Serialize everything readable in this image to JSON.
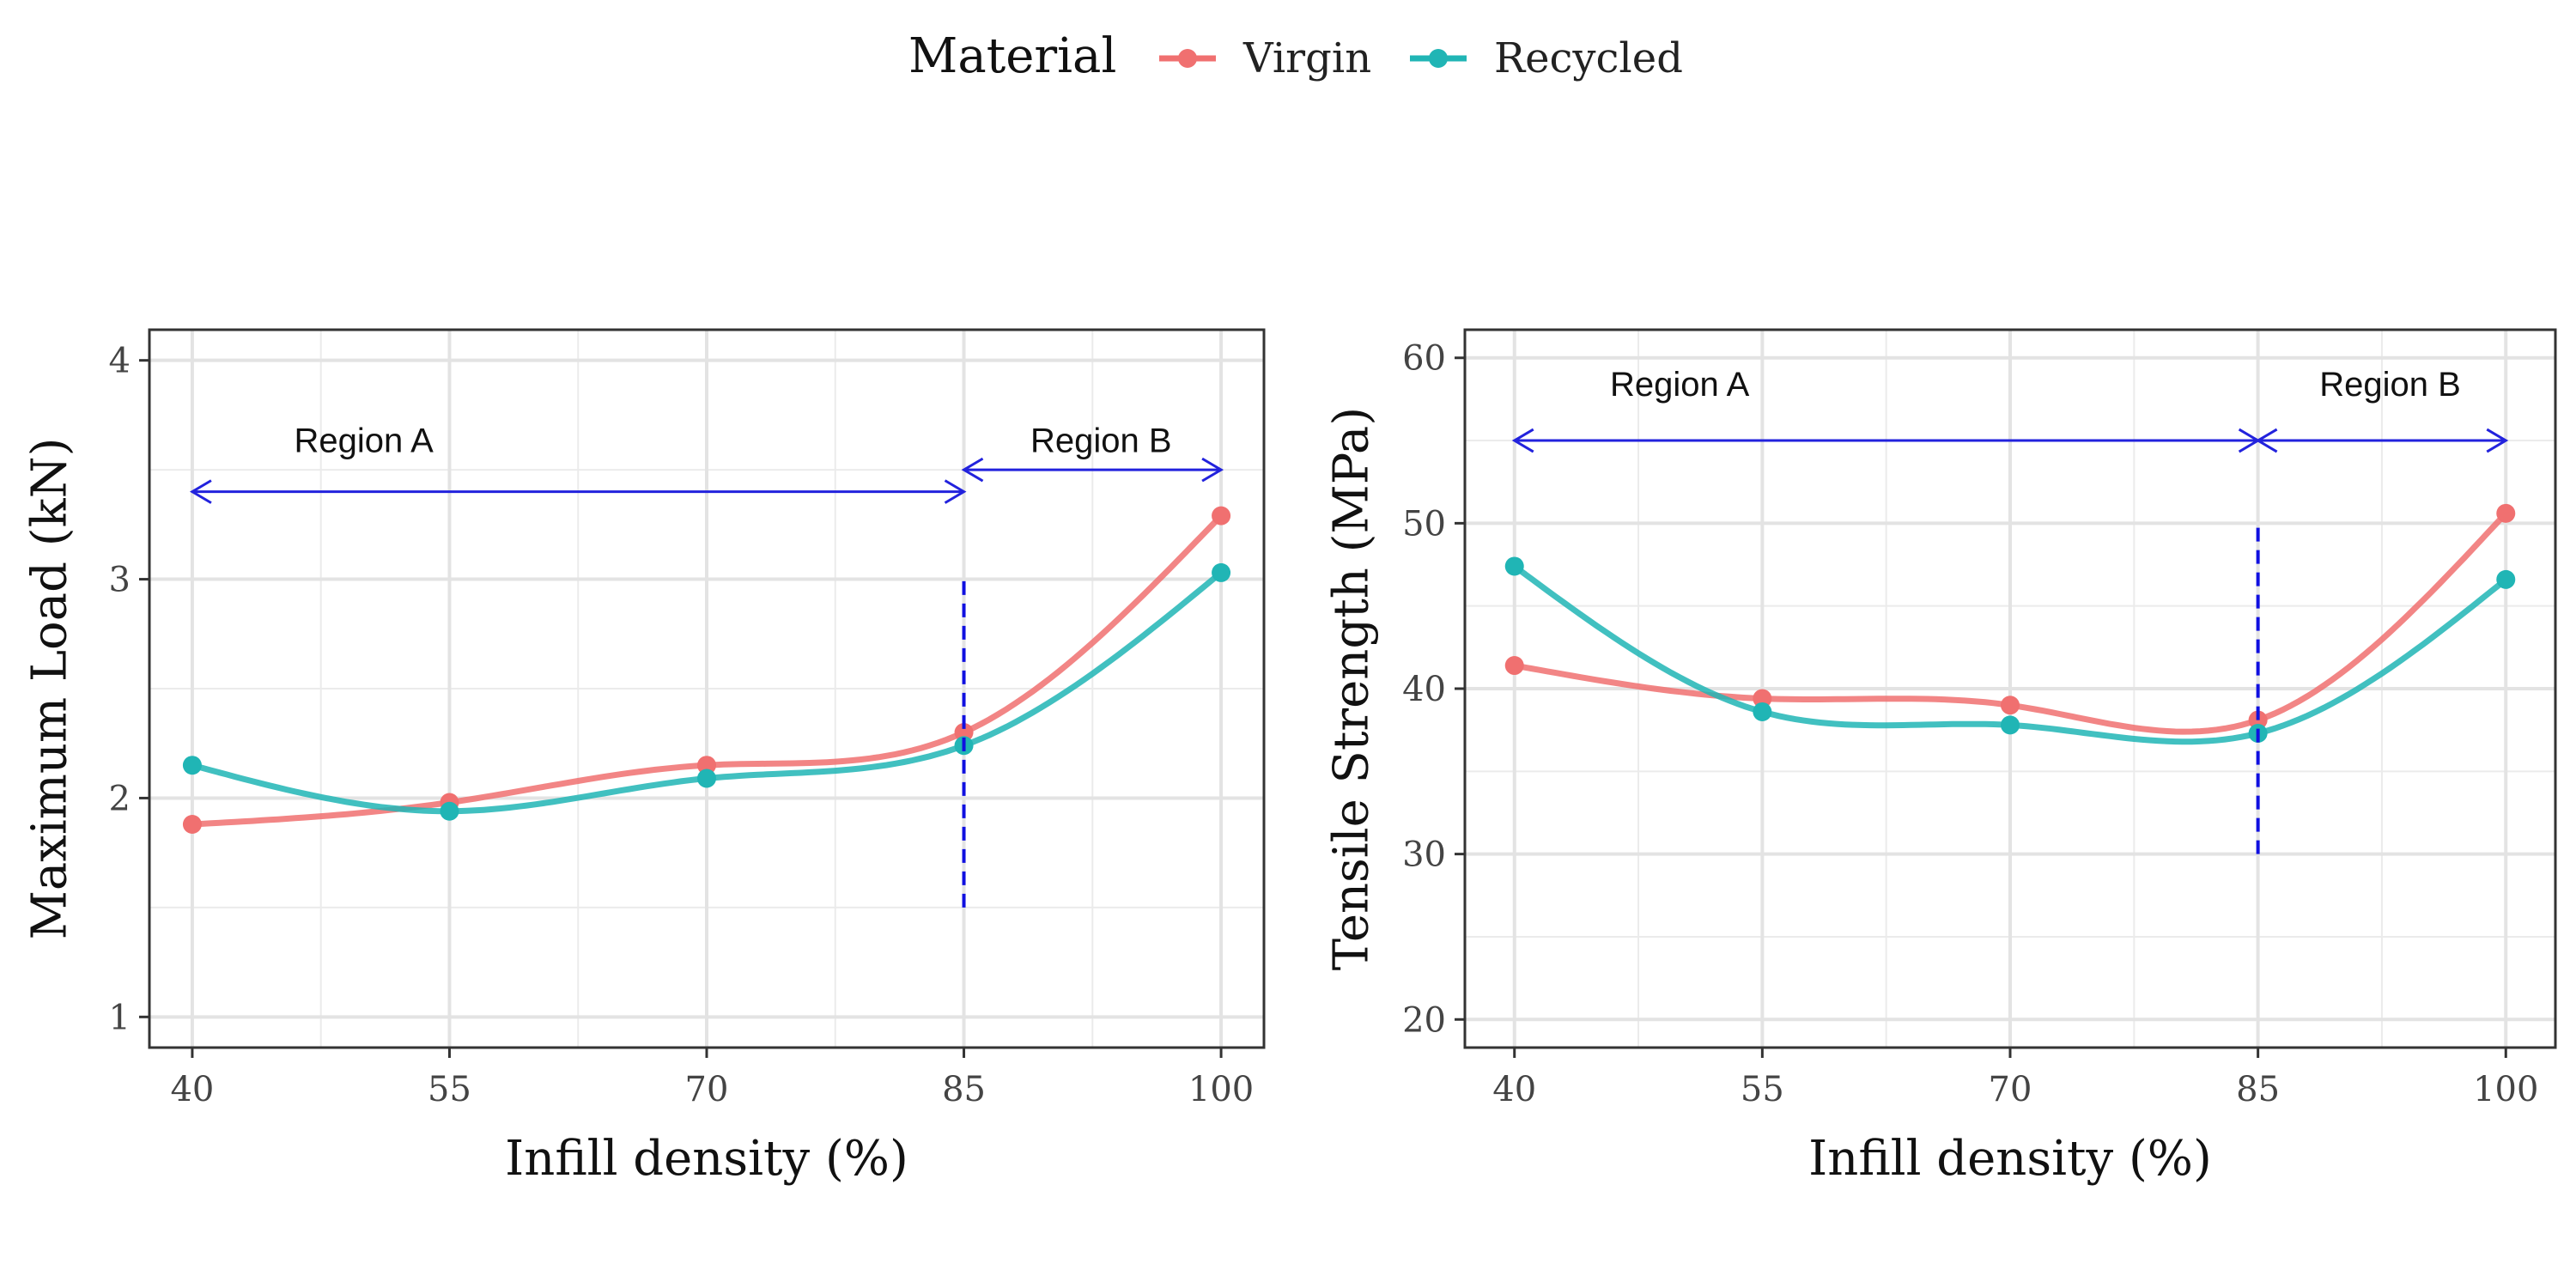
{
  "legend": {
    "title": "Material",
    "items": [
      {
        "label": "Virgin",
        "color": "#F07070"
      },
      {
        "label": "Recycled",
        "color": "#20B5B5"
      }
    ]
  },
  "chart_data": [
    {
      "type": "line",
      "xlabel": "Infill density (%)",
      "ylabel": "Maximum Load (kN)",
      "xlim": [
        37.5,
        102.5
      ],
      "ylim": [
        0.86,
        4.14
      ],
      "x_ticks": [
        40,
        55,
        70,
        85,
        100
      ],
      "y_ticks": [
        1,
        2,
        3,
        4
      ],
      "grid": true,
      "legend_position": "top",
      "x": [
        40,
        55,
        70,
        85,
        100
      ],
      "series": [
        {
          "name": "Virgin",
          "color": "#F07070",
          "values": [
            1.88,
            1.98,
            2.15,
            2.3,
            3.29
          ]
        },
        {
          "name": "Recycled",
          "color": "#20B5B5",
          "values": [
            2.15,
            1.94,
            2.09,
            2.24,
            3.03
          ]
        }
      ],
      "annotations": {
        "divider": {
          "x": 85,
          "y_range": [
            1.5,
            3.0
          ]
        },
        "regions": [
          {
            "label": "Region A",
            "x_range": [
              40,
              85
            ],
            "y": 3.4,
            "label_x": 50,
            "label_y": 3.58
          },
          {
            "label": "Region B",
            "x_range": [
              85,
              100
            ],
            "y": 3.5,
            "label_x": 93,
            "label_y": 3.58
          }
        ]
      }
    },
    {
      "type": "line",
      "xlabel": "Infill density (%)",
      "ylabel": "Tensile Strength (MPa)",
      "xlim": [
        37,
        103
      ],
      "ylim": [
        18.3,
        61.7
      ],
      "x_ticks": [
        40,
        55,
        70,
        85,
        100
      ],
      "y_ticks": [
        20,
        30,
        40,
        50,
        60
      ],
      "grid": true,
      "legend_position": "top",
      "x": [
        40,
        55,
        70,
        85,
        100
      ],
      "series": [
        {
          "name": "Virgin",
          "color": "#F07070",
          "values": [
            41.4,
            39.4,
            39.0,
            38.1,
            50.6
          ]
        },
        {
          "name": "Recycled",
          "color": "#20B5B5",
          "values": [
            47.4,
            38.6,
            37.8,
            37.3,
            46.6
          ]
        }
      ],
      "annotations": {
        "divider": {
          "x": 85,
          "y_range": [
            30,
            50
          ]
        },
        "regions": [
          {
            "label": "Region A",
            "x_range": [
              40,
              85
            ],
            "y": 55,
            "label_x": 50,
            "label_y": 57.7
          },
          {
            "label": "Region B",
            "x_range": [
              85,
              100
            ],
            "y": 55,
            "label_x": 93,
            "label_y": 57.7
          }
        ]
      }
    }
  ]
}
